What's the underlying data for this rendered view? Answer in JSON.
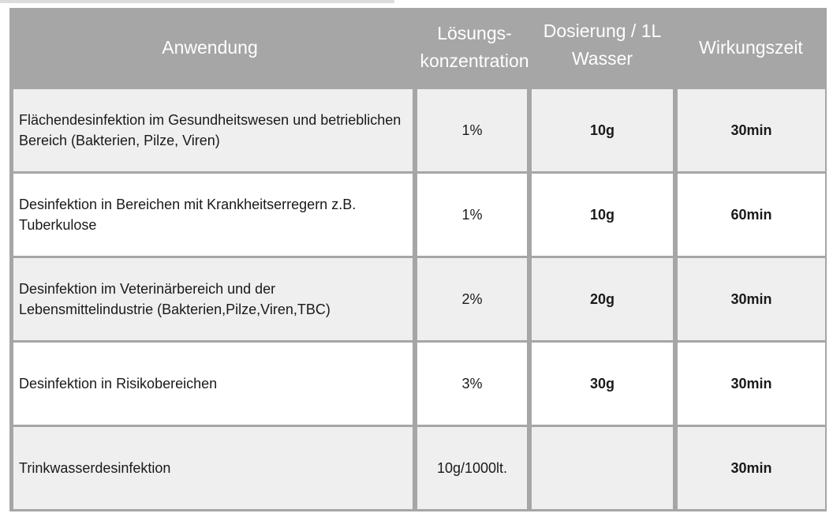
{
  "headers": {
    "application": "Anwendung",
    "concentration": "Lösungs-\nkonzentration",
    "dosage": "Dosierung / 1L\nWasser",
    "contact_time": "Wirkungszeit"
  },
  "rows": [
    {
      "application": "Flächendesinfektion im Gesundheitswesen und betrieblichen Bereich (Bakterien, Pilze, Viren)",
      "concentration": "1%",
      "dosage": "10g",
      "contact_time": "30min"
    },
    {
      "application": "Desinfektion in Bereichen mit Krankheitserregern z.B. Tuberkulose",
      "concentration": "1%",
      "dosage": "10g",
      "contact_time": "60min"
    },
    {
      "application": "Desinfektion im Veterinärbereich und der Lebensmittelindustrie (Bakterien,Pilze,Viren,TBC)",
      "concentration": "2%",
      "dosage": "20g",
      "contact_time": "30min"
    },
    {
      "application": "Desinfektion in Risikobereichen",
      "concentration": "3%",
      "dosage": "30g",
      "contact_time": "30min"
    },
    {
      "application": "Trinkwasserdesinfektion",
      "concentration": "10g/1000lt.",
      "dosage": "",
      "contact_time": "30min"
    }
  ],
  "colors": {
    "header_bg": "#a6a6a6",
    "header_text": "#ffffff",
    "row_shaded": "#efefef",
    "row_white": "#ffffff",
    "grid": "#a6a6a6"
  }
}
